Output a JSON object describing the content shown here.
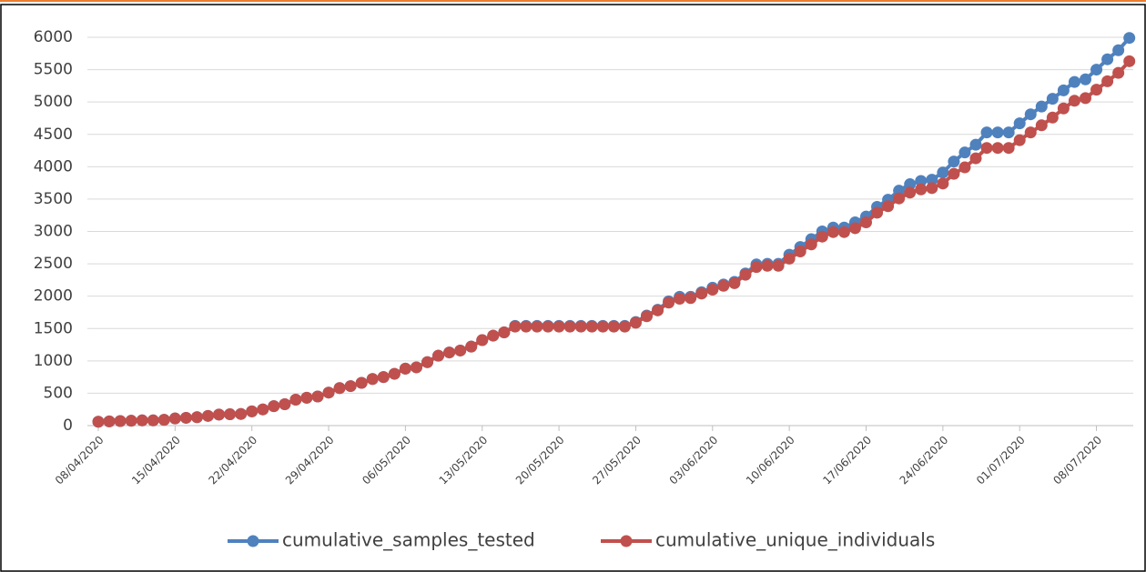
{
  "chart_data": {
    "type": "line",
    "categories": [
      "08/04/2020",
      null,
      null,
      null,
      null,
      null,
      null,
      "15/04/2020",
      null,
      null,
      null,
      null,
      null,
      null,
      "22/04/2020",
      null,
      null,
      null,
      null,
      null,
      null,
      "29/04/2020",
      null,
      null,
      null,
      null,
      null,
      null,
      "06/05/2020",
      null,
      null,
      null,
      null,
      null,
      null,
      "13/05/2020",
      null,
      null,
      null,
      null,
      null,
      null,
      "20/05/2020",
      null,
      null,
      null,
      null,
      null,
      null,
      "27/05/2020",
      null,
      null,
      null,
      null,
      null,
      null,
      "03/06/2020",
      null,
      null,
      null,
      null,
      null,
      null,
      "10/06/2020",
      null,
      null,
      null,
      null,
      null,
      null,
      "17/06/2020",
      null,
      null,
      null,
      null,
      null,
      null,
      "24/06/2020",
      null,
      null,
      null,
      null,
      null,
      null,
      "01/07/2020",
      null,
      null,
      null,
      null,
      null,
      null,
      "08/07/2020",
      null,
      null,
      null
    ],
    "series": [
      {
        "name": "cumulative_samples_tested",
        "color": "#4f81bd",
        "values": [
          60,
          65,
          70,
          75,
          80,
          80,
          90,
          110,
          120,
          130,
          150,
          170,
          175,
          180,
          220,
          250,
          300,
          330,
          400,
          430,
          450,
          510,
          580,
          610,
          660,
          720,
          750,
          800,
          880,
          900,
          980,
          1080,
          1130,
          1160,
          1220,
          1320,
          1390,
          1440,
          1540,
          1540,
          1540,
          1540,
          1540,
          1540,
          1540,
          1540,
          1540,
          1540,
          1540,
          1600,
          1700,
          1790,
          1920,
          1990,
          1990,
          2060,
          2130,
          2180,
          2220,
          2350,
          2490,
          2500,
          2500,
          2640,
          2760,
          2880,
          3000,
          3060,
          3060,
          3140,
          3230,
          3380,
          3490,
          3630,
          3730,
          3780,
          3800,
          3910,
          4080,
          4220,
          4340,
          4530,
          4530,
          4530,
          4670,
          4810,
          4930,
          5050,
          5180,
          5310,
          5350,
          5500,
          5660,
          5800,
          5990
        ]
      },
      {
        "name": "cumulative_unique_individuals",
        "color": "#c0504d",
        "values": [
          60,
          65,
          70,
          75,
          80,
          80,
          90,
          110,
          120,
          130,
          150,
          170,
          175,
          180,
          220,
          250,
          300,
          330,
          400,
          430,
          450,
          510,
          580,
          610,
          660,
          720,
          750,
          800,
          880,
          900,
          980,
          1080,
          1130,
          1160,
          1220,
          1320,
          1390,
          1440,
          1530,
          1530,
          1530,
          1530,
          1530,
          1530,
          1530,
          1530,
          1530,
          1530,
          1530,
          1590,
          1690,
          1780,
          1900,
          1960,
          1970,
          2040,
          2100,
          2160,
          2200,
          2330,
          2450,
          2470,
          2470,
          2580,
          2690,
          2800,
          2920,
          2990,
          2990,
          3050,
          3140,
          3290,
          3390,
          3510,
          3600,
          3650,
          3670,
          3740,
          3890,
          3990,
          4130,
          4290,
          4290,
          4290,
          4410,
          4530,
          4640,
          4760,
          4900,
          5020,
          5060,
          5190,
          5320,
          5450,
          5630
        ]
      }
    ],
    "ylim": [
      0,
      6000
    ],
    "yticks": [
      0,
      500,
      1000,
      1500,
      2000,
      2500,
      3000,
      3500,
      4000,
      4500,
      5000,
      5500,
      6000
    ],
    "grid": true,
    "legend": "bottom"
  }
}
